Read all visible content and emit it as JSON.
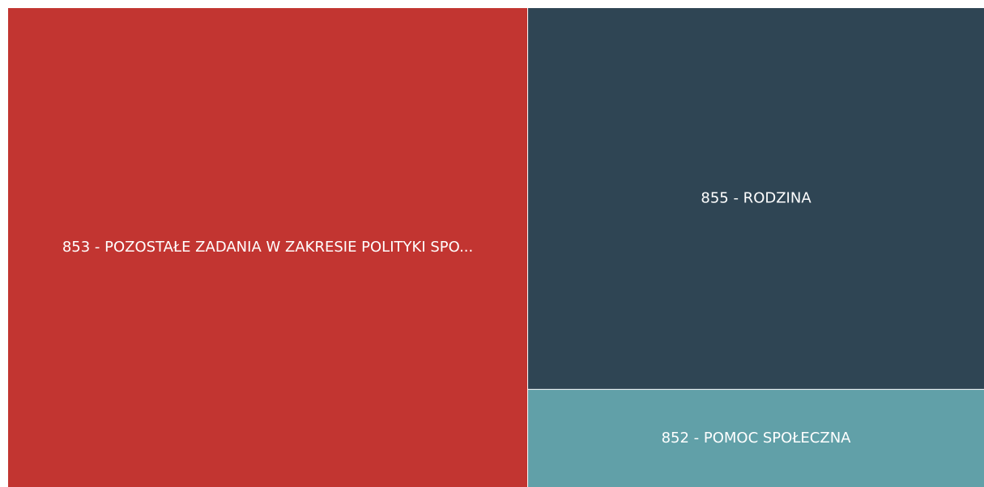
{
  "chart_data": {
    "type": "treemap",
    "categories": [
      "853 - POZOSTAŁE ZADANIA W ZAKRESIE POLITYKI SPO...",
      "855 - RODZINA",
      "852 - POMOC SPOŁECZNA"
    ],
    "values": [
      53.2,
      37.3,
      9.5
    ],
    "colors": [
      "#c23531",
      "#2f4554",
      "#61a0a8"
    ]
  }
}
